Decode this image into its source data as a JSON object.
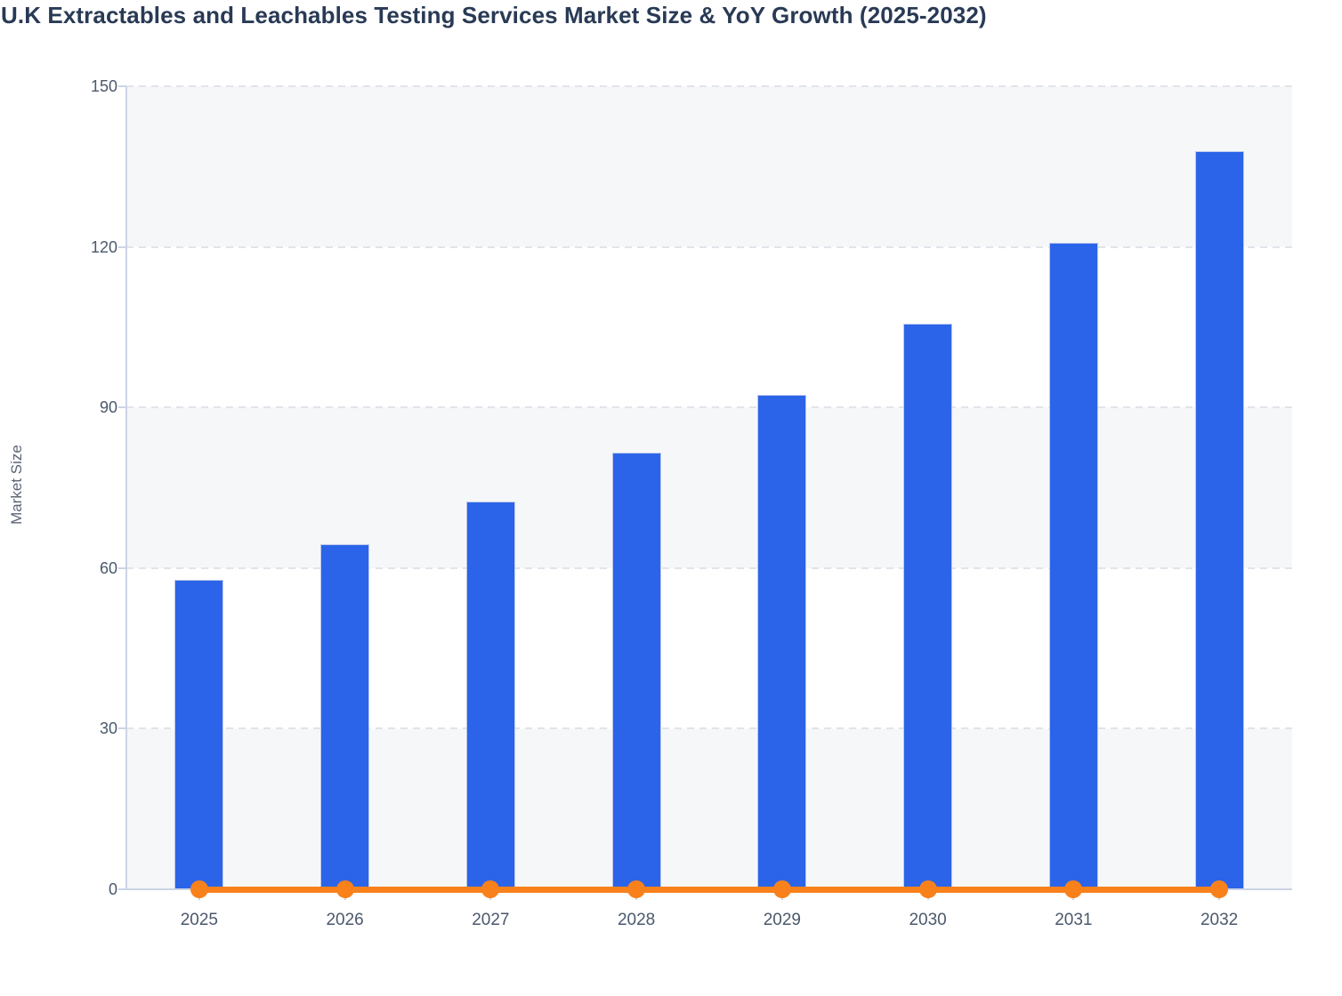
{
  "page": {
    "title": "U.K Extractables and Leachables Testing Services Market Size & YoY Growth (2025-2032)"
  },
  "chart_data": {
    "type": "bar",
    "title": "U.K Extractables and Leachables Testing Services Market Size & YoY Growth (2025-2032)",
    "xlabel": "",
    "ylabel": "Market Size",
    "categories": [
      "2025",
      "2026",
      "2027",
      "2028",
      "2029",
      "2030",
      "2031",
      "2032"
    ],
    "series": [
      {
        "name": "Market Size",
        "type": "bar",
        "color": "#2b64e8",
        "values": [
          57.8,
          64.5,
          72.4,
          81.5,
          92.4,
          105.6,
          120.8,
          137.9
        ]
      },
      {
        "name": "YoY Growth",
        "type": "line",
        "color": "#f9811c",
        "values": [
          0,
          0,
          0,
          0,
          0,
          0,
          0,
          0
        ]
      }
    ],
    "ylim": [
      0,
      150
    ],
    "yticks": [
      0,
      30,
      60,
      90,
      120,
      150
    ],
    "grid": "dashed horizontal gridlines every 30",
    "plot_background": "alternating light-gray/white horizontal bands",
    "legend_position": "none"
  }
}
